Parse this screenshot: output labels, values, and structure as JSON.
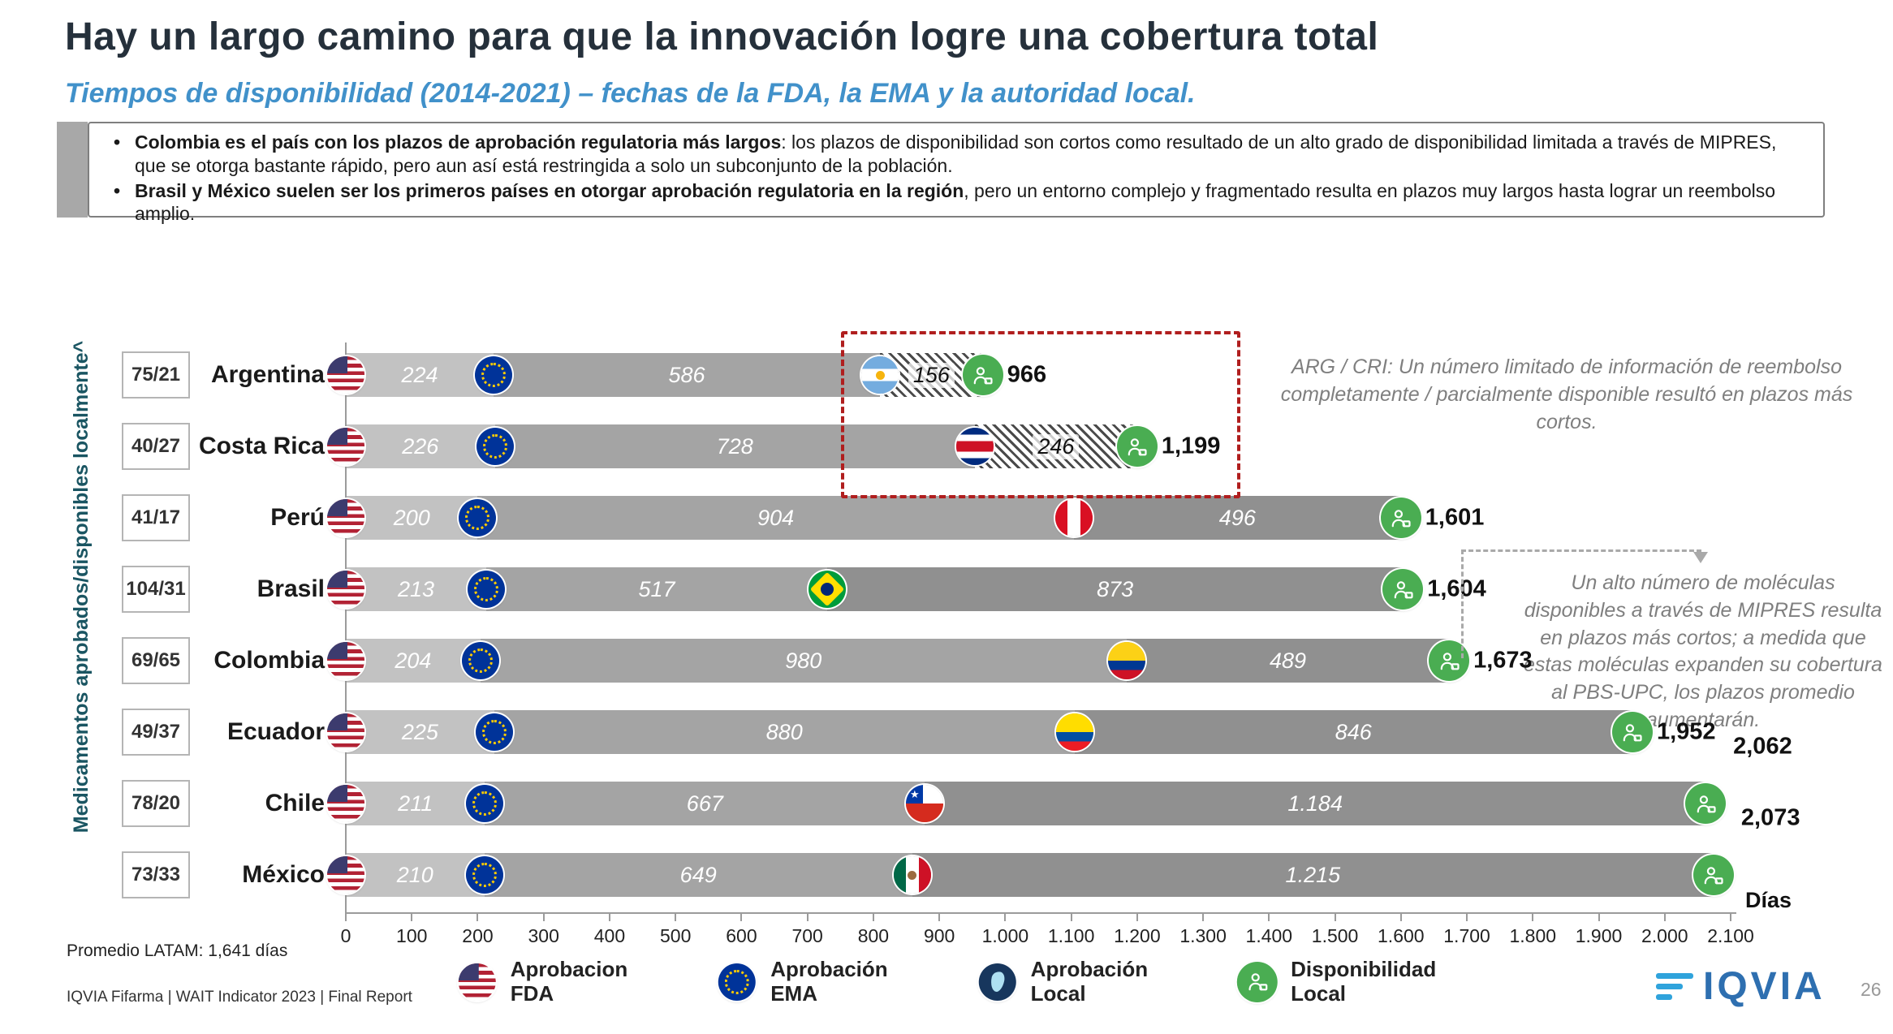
{
  "slide": {
    "title": "Hay un largo camino para que la innovación logre una cobertura total",
    "subtitle": "Tiempos de disponibilidad (2014-2021) – fechas de la FDA, la EMA y la autoridad local.",
    "source": "IQVIA Fifarma | WAIT Indicator 2023 | Final Report",
    "page_number": "26",
    "logo_text": "IQVIA"
  },
  "colors": {
    "subtitle_blue": "#4191CA",
    "highlight_red": "#B01E1E",
    "bar_segment_1": "#C2C2C2",
    "bar_segment_2": "#A4A4A4",
    "bar_segment_3": "#909090",
    "availability_green": "#4AAD52",
    "logo_blue": "#2E6FB0",
    "y_label_teal": "#1A5562"
  },
  "callout": {
    "bullets": [
      {
        "bold": "Colombia es el país con los plazos de aprobación regulatoria más largos",
        "rest": ": los plazos de disponibilidad son cortos como resultado de un alto grado de disponibilidad limitada a través de MIPRES, que se otorga bastante rápido, pero aun así está restringida a solo un subconjunto de la población."
      },
      {
        "bold": "Brasil y México suelen ser los primeros países en otorgar aprobación regulatoria en la región",
        "rest": ", pero un entorno complejo y fragmentado resulta en plazos muy largos hasta lograr un reembolso amplio."
      }
    ]
  },
  "annotations": {
    "arg_cri": "ARG / CRI: Un número limitado de información de reembolso completamente / parcialmente disponible resultó en plazos más cortos.",
    "mipres": "Un alto número de moléculas disponibles a través de MIPRES resulta en plazos más cortos; a medida que estas moléculas expanden su cobertura al PBS-UPC, los plazos promedio aumentarán."
  },
  "legend": {
    "items": [
      {
        "icon": "usa-flag-icon",
        "label": "Aprobacion\nFDA"
      },
      {
        "icon": "eu-flag-icon",
        "label": "Aprobación\nEMA"
      },
      {
        "icon": "local-approval-icon",
        "label": "Aprobación\nLocal"
      },
      {
        "icon": "local-availability-icon",
        "label": "Disponibilidad\nLocal"
      }
    ]
  },
  "chart_data": {
    "type": "bar",
    "orientation": "horizontal",
    "stacked": true,
    "xlabel": "Días",
    "y_axis_label": "Medicamentos aprobados/disponibles localmente^",
    "x_range": [
      0,
      2100
    ],
    "x_tick_interval": 100,
    "x_ticks": [
      "0",
      "100",
      "200",
      "300",
      "400",
      "500",
      "600",
      "700",
      "800",
      "900",
      "1.000",
      "1.100",
      "1.200",
      "1.300",
      "1.400",
      "1.500",
      "1.600",
      "1.700",
      "1.800",
      "1.900",
      "2.000",
      "2.100"
    ],
    "segment_meaning": [
      "Aprobacion FDA",
      "Aprobación EMA",
      "Aprobación Local",
      "Disponibilidad Local"
    ],
    "average_note": "Promedio LATAM: 1,641 días",
    "rows": [
      {
        "country": "Argentina",
        "ratio": "75/21",
        "flag": "argentina",
        "segments": [
          224,
          586,
          156
        ],
        "segment_labels": [
          "224",
          "586",
          "156"
        ],
        "total": "966",
        "hatched": true
      },
      {
        "country": "Costa Rica",
        "ratio": "40/27",
        "flag": "costa-rica",
        "segments": [
          226,
          728,
          246
        ],
        "segment_labels": [
          "226",
          "728",
          "246"
        ],
        "total": "1,199",
        "hatched": true
      },
      {
        "country": "Perú",
        "ratio": "41/17",
        "flag": "peru",
        "segments": [
          200,
          904,
          496
        ],
        "segment_labels": [
          "200",
          "904",
          "496"
        ],
        "total": "1,601"
      },
      {
        "country": "Brasil",
        "ratio": "104/31",
        "flag": "brasil",
        "segments": [
          213,
          517,
          873
        ],
        "segment_labels": [
          "213",
          "517",
          "873"
        ],
        "total": "1,604"
      },
      {
        "country": "Colombia",
        "ratio": "69/65",
        "flag": "colombia",
        "segments": [
          204,
          980,
          489
        ],
        "segment_labels": [
          "204",
          "980",
          "489"
        ],
        "total": "1,673"
      },
      {
        "country": "Ecuador",
        "ratio": "49/37",
        "flag": "ecuador",
        "segments": [
          225,
          880,
          846
        ],
        "segment_labels": [
          "225",
          "880",
          "846"
        ],
        "total": "1,952"
      },
      {
        "country": "Chile",
        "ratio": "78/20",
        "flag": "chile",
        "segments": [
          211,
          667,
          1184
        ],
        "segment_labels": [
          "211",
          "667",
          "1.184"
        ],
        "total": "2,062",
        "total_offset": true
      },
      {
        "country": "México",
        "ratio": "73/33",
        "flag": "mexico",
        "segments": [
          210,
          649,
          1215
        ],
        "segment_labels": [
          "210",
          "649",
          "1.215"
        ],
        "total": "2,073",
        "total_offset": true
      }
    ]
  }
}
